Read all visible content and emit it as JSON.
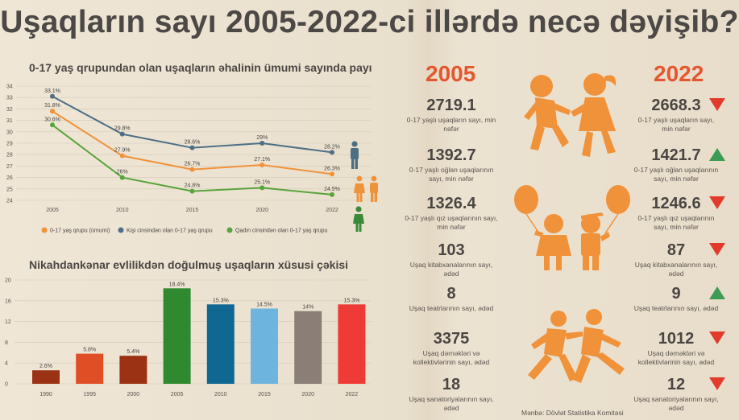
{
  "title": "Uşaqların sayı 2005-2022-ci illərdə necə dəyişib?",
  "colors": {
    "orange": "#f0923a",
    "blue": "#4d6f86",
    "green": "#5aa43c",
    "accent": "#e4572e",
    "down": "#e23b2c",
    "up": "#3d9c53"
  },
  "chart_data": [
    {
      "type": "line",
      "title": "0-17 yaş qrupundan olan uşaqların əhalinin ümumi sayında payı",
      "x": [
        "2005",
        "2010",
        "2015",
        "2020",
        "2022"
      ],
      "ylim": [
        24,
        34
      ],
      "yticks": [
        "24",
        "25",
        "26",
        "27",
        "28",
        "29",
        "30",
        "31",
        "32",
        "33",
        "34"
      ],
      "grid": true,
      "legend": "bottom",
      "series": [
        {
          "name": "Kişi cinsindən olan 0-17 yaş qrupu",
          "color": "#4d6f86",
          "values": [
            33.1,
            29.8,
            28.6,
            29.0,
            28.2
          ],
          "labels": [
            "33.1%",
            "29.8%",
            "28.6%",
            "29%",
            "28.2%"
          ]
        },
        {
          "name": "0-17 yaş qrupu (ümumi)",
          "color": "#f0923a",
          "values": [
            31.8,
            27.9,
            26.7,
            27.1,
            26.3
          ],
          "labels": [
            "31.8%",
            "27.9%",
            "26.7%",
            "27.1%",
            "26.3%"
          ]
        },
        {
          "name": "Qadın cinsindən olan 0-17 yaş qrupu",
          "color": "#5aa43c",
          "values": [
            30.6,
            26.0,
            24.8,
            25.1,
            24.5
          ],
          "labels": [
            "30.6%",
            "26%",
            "24.8%",
            "25.1%",
            "24.5%"
          ]
        }
      ],
      "legend_order": [
        1,
        0,
        2
      ]
    },
    {
      "type": "bar",
      "title": "Nikahdankənar evlilikdən doğulmuş uşaqların xüsusi çəkisi",
      "categories": [
        "1990",
        "1995",
        "2000",
        "2005",
        "2010",
        "2015",
        "2020",
        "2022"
      ],
      "values": [
        2.6,
        5.8,
        5.4,
        18.4,
        15.3,
        14.5,
        14.0,
        15.3
      ],
      "labels": [
        "2.6%",
        "5.8%",
        "5.4%",
        "18.4%",
        "15.3%",
        "14.5%",
        "14%",
        "15.3%"
      ],
      "colors": [
        "#9a3213",
        "#e04e26",
        "#9a3213",
        "#2f8a2f",
        "#0f6792",
        "#6db5df",
        "#8a7e76",
        "#ee3b36"
      ],
      "ylim": [
        0,
        20
      ],
      "yticks": [
        "0",
        "4",
        "8",
        "12",
        "16",
        "20"
      ],
      "grid": true
    }
  ],
  "stats": {
    "year_left": "2005",
    "year_right": "2022",
    "rows": [
      {
        "v2005": "2719.1",
        "v2022": "2668.3",
        "label": "0-17 yaşlı uşaqların sayı, min nəfər",
        "trend": "down"
      },
      {
        "v2005": "1392.7",
        "v2022": "1421.7",
        "label": "0-17 yaşlı oğlan uşaqlarının sayı, min nəfər",
        "trend": "up"
      },
      {
        "v2005": "1326.4",
        "v2022": "1246.6",
        "label": "0-17 yaşlı qız uşaqlarının sayı, min nəfər",
        "trend": "down"
      },
      {
        "v2005": "103",
        "v2022": "87",
        "label": "Uşaq kitabxanalarının sayı, ədəd",
        "trend": "down"
      },
      {
        "v2005": "8",
        "v2022": "9",
        "label": "Uşaq teatrlarının sayı, ədəd",
        "trend": "up"
      },
      {
        "v2005": "3375",
        "v2022": "1012",
        "label": "Uşaq dərnəkləri və kollektivlərinin sayı, ədəd",
        "trend": "down"
      },
      {
        "v2005": "18",
        "v2022": "12",
        "label": "Uşaq sanatoriyalarının sayı, ədəd",
        "trend": "down"
      }
    ]
  },
  "source": "Mənbə: Dövlət Statistika Komitəsi",
  "icons": [
    "male-person-icon",
    "family-persons-icon",
    "female-person-icon",
    "kids-playing-icon",
    "kids-with-balloons-icon",
    "kids-running-icon"
  ]
}
